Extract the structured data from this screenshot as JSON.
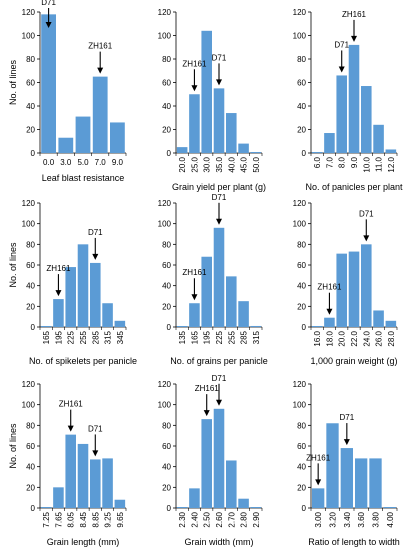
{
  "figure": {
    "ylabel": "No. of lines"
  },
  "chart_data": [
    {
      "type": "bar",
      "categories": [
        "0.0",
        "3.0",
        "5.0",
        "7.0",
        "9.0"
      ],
      "values": [
        118,
        13,
        31,
        65,
        26
      ],
      "ylim": [
        0,
        120
      ],
      "yticks": [
        0,
        20,
        40,
        60,
        80,
        100,
        120
      ],
      "xlabel": "Leaf blast resistance",
      "ylabel": "No. of lines",
      "tick_rotation": 0,
      "color": "#5b9bd5",
      "grid": false,
      "annotations": [
        {
          "text": "D71",
          "category_index": 0
        },
        {
          "text": "ZH161",
          "category_index": 3
        }
      ]
    },
    {
      "type": "bar",
      "categories": [
        "20.0",
        "25.0",
        "30.0",
        "35.0",
        "40.0",
        "45.0",
        "50.0"
      ],
      "values": [
        5,
        50,
        104,
        55,
        34,
        8,
        0
      ],
      "ylim": [
        0,
        120
      ],
      "yticks": [
        0,
        20,
        40,
        60,
        80,
        100,
        120
      ],
      "xlabel": "Grain yield per plant (g)",
      "ylabel": "",
      "tick_rotation": -90,
      "color": "#5b9bd5",
      "grid": false,
      "annotations": [
        {
          "text": "ZH161",
          "category_index": 1
        },
        {
          "text": "D71",
          "category_index": 3
        }
      ]
    },
    {
      "type": "bar",
      "categories": [
        "6.0",
        "7.0",
        "8.0",
        "9.0",
        "10.0",
        "11.0",
        "12.0"
      ],
      "values": [
        0,
        17,
        66,
        92,
        57,
        24,
        3
      ],
      "ylim": [
        0,
        120
      ],
      "yticks": [
        0,
        20,
        40,
        60,
        80,
        100,
        120
      ],
      "xlabel": "No. of panicles per plant",
      "ylabel": "",
      "tick_rotation": -90,
      "color": "#5b9bd5",
      "grid": false,
      "annotations": [
        {
          "text": "ZH161",
          "category_index": 3
        },
        {
          "text": "D71",
          "category_index": 2
        }
      ]
    },
    {
      "type": "bar",
      "categories": [
        "165",
        "195",
        "225",
        "255",
        "285",
        "315",
        "345"
      ],
      "values": [
        0,
        27,
        58,
        80,
        62,
        23,
        6
      ],
      "ylim": [
        0,
        120
      ],
      "yticks": [
        0,
        20,
        40,
        60,
        80,
        100,
        120
      ],
      "xlabel": "No. of spikelets per panicle",
      "ylabel": "No. of lines",
      "tick_rotation": -90,
      "color": "#5b9bd5",
      "grid": false,
      "annotations": [
        {
          "text": "ZH161",
          "category_index": 1
        },
        {
          "text": "D71",
          "category_index": 4
        }
      ]
    },
    {
      "type": "bar",
      "categories": [
        "135",
        "165",
        "195",
        "225",
        "255",
        "285",
        "315"
      ],
      "values": [
        0,
        23,
        68,
        96,
        49,
        25,
        1
      ],
      "ylim": [
        0,
        120
      ],
      "yticks": [
        0,
        20,
        40,
        60,
        80,
        100,
        120
      ],
      "xlabel": "No. of grains per panicle",
      "ylabel": "",
      "tick_rotation": -90,
      "color": "#5b9bd5",
      "grid": false,
      "annotations": [
        {
          "text": "ZH161",
          "category_index": 1
        },
        {
          "text": "D71",
          "category_index": 3
        }
      ]
    },
    {
      "type": "bar",
      "categories": [
        "16.0",
        "18.0",
        "20.0",
        "22.0",
        "24.0",
        "26.0",
        "28.0"
      ],
      "values": [
        0,
        9,
        71,
        73,
        80,
        16,
        6
      ],
      "ylim": [
        0,
        120
      ],
      "yticks": [
        0,
        20,
        40,
        60,
        80,
        100,
        120
      ],
      "xlabel": "1,000 grain weight (g)",
      "ylabel": "",
      "tick_rotation": -90,
      "color": "#5b9bd5",
      "grid": false,
      "annotations": [
        {
          "text": "ZH161",
          "category_index": 1
        },
        {
          "text": "D71",
          "category_index": 4
        }
      ]
    },
    {
      "type": "bar",
      "categories": [
        "7.25",
        "7.65",
        "8.05",
        "8.45",
        "8.85",
        "9.25",
        "9.65"
      ],
      "values": [
        0,
        20,
        71,
        62,
        47,
        48,
        8
      ],
      "ylim": [
        0,
        120
      ],
      "yticks": [
        0,
        20,
        40,
        60,
        80,
        100,
        120
      ],
      "xlabel": "Grain length (mm)",
      "ylabel": "No. of lines",
      "tick_rotation": -90,
      "color": "#5b9bd5",
      "grid": false,
      "annotations": [
        {
          "text": "ZH161",
          "category_index": 2
        },
        {
          "text": "D71",
          "category_index": 4
        }
      ]
    },
    {
      "type": "bar",
      "categories": [
        "2.30",
        "2.40",
        "2.50",
        "2.60",
        "2.70",
        "2.80",
        "2.90"
      ],
      "values": [
        0,
        19,
        86,
        96,
        46,
        9,
        0
      ],
      "ylim": [
        0,
        120
      ],
      "yticks": [
        0,
        20,
        40,
        60,
        80,
        100,
        120
      ],
      "xlabel": "Grain width (mm)",
      "ylabel": "",
      "tick_rotation": -90,
      "color": "#5b9bd5",
      "grid": false,
      "annotations": [
        {
          "text": "ZH161",
          "category_index": 2
        },
        {
          "text": "D71",
          "category_index": 3
        }
      ]
    },
    {
      "type": "bar",
      "categories": [
        "3.00",
        "3.20",
        "3.40",
        "3.60",
        "3.80",
        "4.00"
      ],
      "values": [
        19,
        82,
        58,
        48,
        48,
        0
      ],
      "ylim": [
        0,
        120
      ],
      "yticks": [
        0,
        20,
        40,
        60,
        80,
        100,
        120
      ],
      "xlabel": "Ratio of length to width",
      "ylabel": "",
      "tick_rotation": -90,
      "color": "#5b9bd5",
      "grid": false,
      "annotations": [
        {
          "text": "ZH161",
          "category_index": 0
        },
        {
          "text": "D71",
          "category_index": 2
        }
      ]
    }
  ]
}
